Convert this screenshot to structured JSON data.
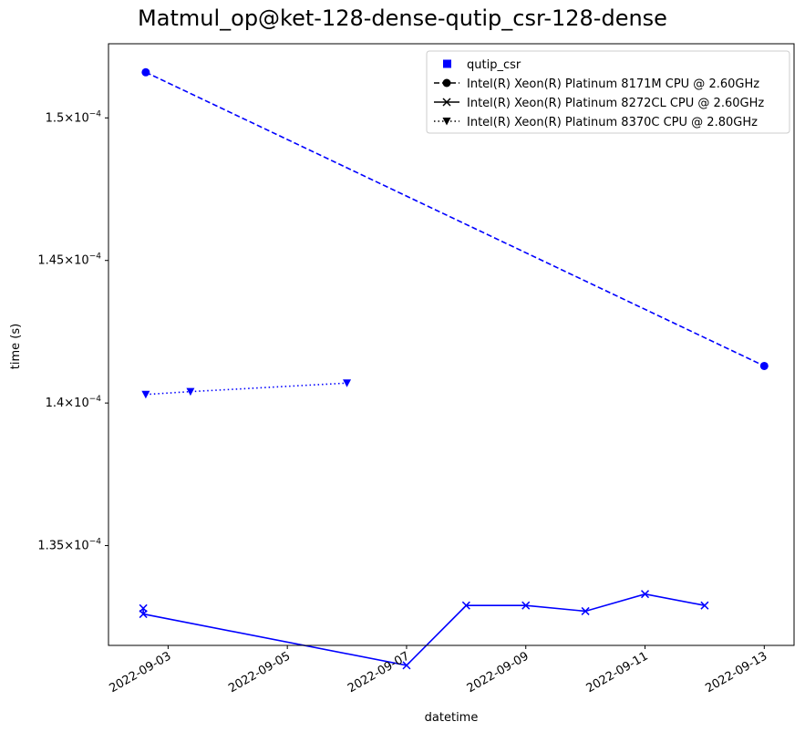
{
  "chart_data": {
    "type": "line",
    "title": "Matmul_op@ket-128-dense-qutip_csr-128-dense",
    "xlabel": "datetime",
    "ylabel": "time (s)",
    "x_type": "date",
    "xlim": [
      "2022-09-02T00:00",
      "2022-09-13T12:00"
    ],
    "ylim": [
      0.0001315,
      0.0001526
    ],
    "yticks": [
      {
        "value": 0.000135,
        "base": "1.35",
        "exp": "−4"
      },
      {
        "value": 0.00014,
        "base": "1.4",
        "exp": "−4"
      },
      {
        "value": 0.000145,
        "base": "1.45",
        "exp": "−4"
      },
      {
        "value": 0.00015,
        "base": "1.5",
        "exp": "−4"
      }
    ],
    "xticks": [
      "2022-09-03",
      "2022-09-05",
      "2022-09-07",
      "2022-09-09",
      "2022-09-11",
      "2022-09-13"
    ],
    "grid": false,
    "legend_position": "top-right",
    "legend": {
      "group_label": "qutip_csr",
      "entries": [
        {
          "label": "Intel(R) Xeon(R) Platinum 8171M CPU @ 2.60GHz",
          "linestyle": "dashed",
          "marker": "circle"
        },
        {
          "label": "Intel(R) Xeon(R) Platinum 8272CL CPU @ 2.60GHz",
          "linestyle": "solid",
          "marker": "x"
        },
        {
          "label": "Intel(R) Xeon(R) Platinum 8370C CPU @ 2.80GHz",
          "linestyle": "dotted",
          "marker": "triangle-down"
        }
      ]
    },
    "color": "#0000ff",
    "series": [
      {
        "name": "Intel(R) Xeon(R) Platinum 8171M CPU @ 2.60GHz",
        "linestyle": "dashed",
        "marker": "circle",
        "points": [
          {
            "x": "2022-09-02T15:00",
            "y": 0.0001516
          },
          {
            "x": "2022-09-13T00:00",
            "y": 0.0001413
          }
        ]
      },
      {
        "name": "Intel(R) Xeon(R) Platinum 8272CL CPU @ 2.60GHz",
        "linestyle": "solid",
        "marker": "x",
        "points": [
          {
            "x": "2022-09-02T14:00",
            "y": 0.0001328
          },
          {
            "x": "2022-09-02T14:00",
            "y": 0.0001326
          },
          {
            "x": "2022-09-07T00:00",
            "y": 0.0001308
          },
          {
            "x": "2022-09-08T00:00",
            "y": 0.0001329
          },
          {
            "x": "2022-09-09T00:00",
            "y": 0.0001329
          },
          {
            "x": "2022-09-10T00:00",
            "y": 0.0001327
          },
          {
            "x": "2022-09-11T00:00",
            "y": 0.0001333
          },
          {
            "x": "2022-09-12T00:00",
            "y": 0.0001329
          }
        ]
      },
      {
        "name": "Intel(R) Xeon(R) Platinum 8370C CPU @ 2.80GHz",
        "linestyle": "dotted",
        "marker": "triangle-down",
        "points": [
          {
            "x": "2022-09-02T15:00",
            "y": 0.0001403
          },
          {
            "x": "2022-09-03T09:00",
            "y": 0.0001404
          },
          {
            "x": "2022-09-06T00:00",
            "y": 0.0001407
          }
        ]
      }
    ]
  }
}
